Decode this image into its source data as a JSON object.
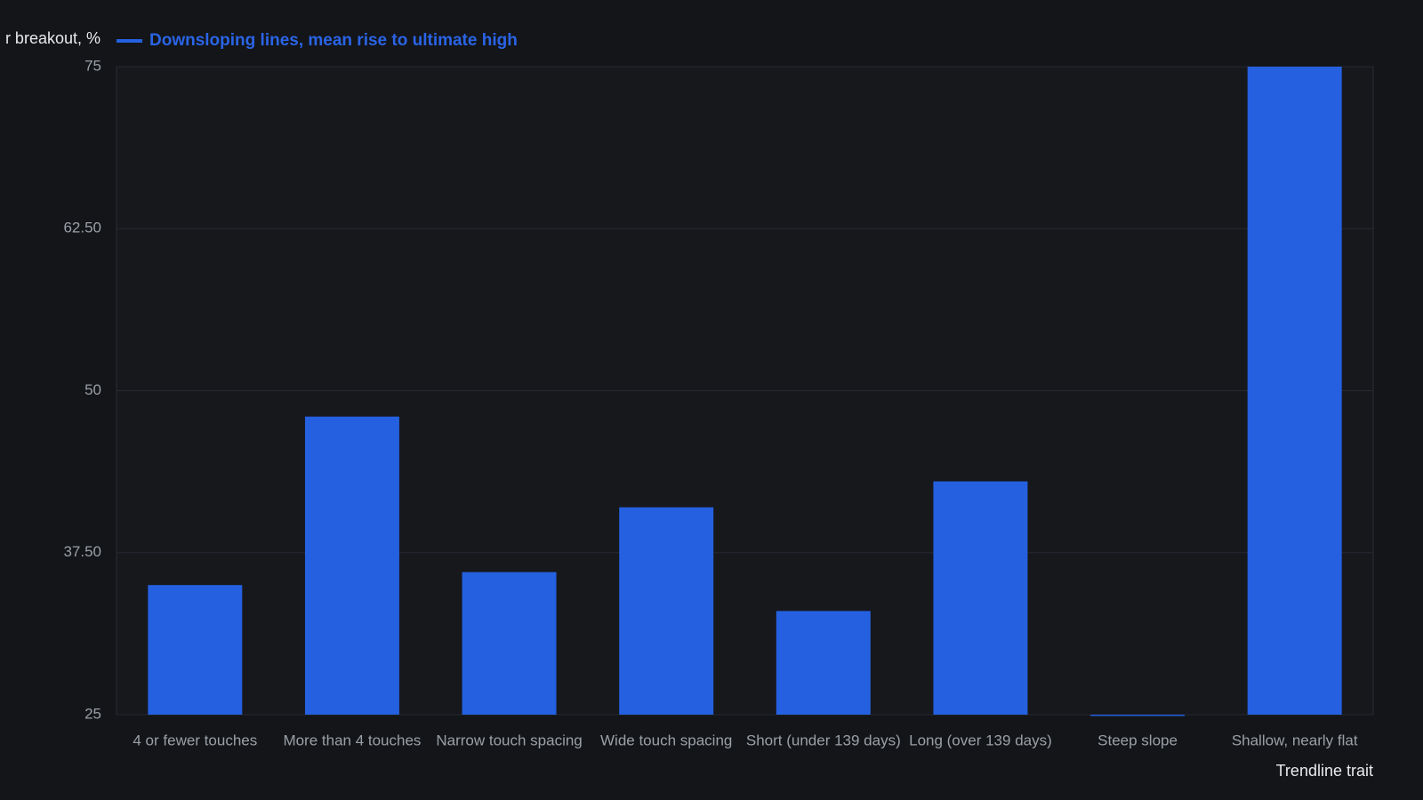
{
  "chart_data": {
    "type": "bar",
    "y_axis_label": "r breakout, %",
    "x_axis_label": "Trendline trait",
    "categories": [
      "4 or fewer touches",
      "More than 4 touches",
      "Narrow touch spacing",
      "Wide touch spacing",
      "Short (under 139 days)",
      "Long (over 139 days)",
      "Steep slope",
      "Shallow, nearly flat"
    ],
    "series": [
      {
        "name": "Downsloping lines, mean rise to ultimate high",
        "color": "#2560e0",
        "values": [
          35,
          48,
          36,
          41,
          33,
          43,
          24.9,
          75
        ]
      }
    ],
    "ylim": [
      25,
      75
    ],
    "yticks": [
      25,
      {
        "value": 37.5,
        "label": "37.50"
      },
      50,
      {
        "value": 62.5,
        "label": "62.50"
      },
      75
    ],
    "grid": true
  }
}
